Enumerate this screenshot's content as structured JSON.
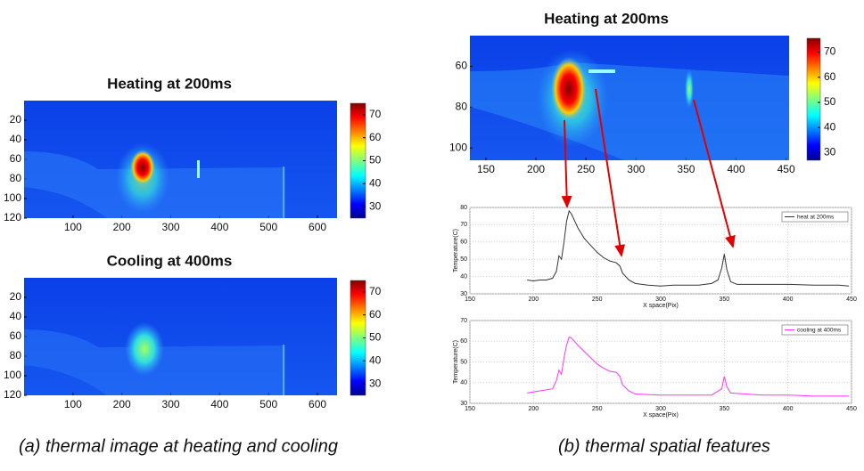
{
  "chart_data": [
    {
      "type": "heatmap",
      "title": "Heating at 200ms",
      "xlim": [
        0,
        640
      ],
      "ylim": [
        120,
        0
      ],
      "xticks": [
        100,
        200,
        300,
        400,
        500,
        600
      ],
      "yticks": [
        20,
        40,
        60,
        80,
        100,
        120
      ],
      "clim": [
        25,
        75
      ],
      "cticks": [
        30,
        40,
        50,
        60,
        70
      ]
    },
    {
      "type": "heatmap",
      "title": "Cooling at 400ms",
      "xlim": [
        0,
        640
      ],
      "ylim": [
        120,
        0
      ],
      "xticks": [
        100,
        200,
        300,
        400,
        500,
        600
      ],
      "yticks": [
        20,
        40,
        60,
        80,
        100,
        120
      ],
      "clim": [
        25,
        75
      ],
      "cticks": [
        30,
        40,
        50,
        60,
        70
      ]
    },
    {
      "type": "heatmap",
      "title": "Heating at 200ms",
      "xlim": [
        134,
        453
      ],
      "ylim": [
        106,
        45
      ],
      "xticks": [
        150,
        200,
        250,
        300,
        350,
        400,
        450
      ],
      "yticks": [
        60,
        80,
        100
      ],
      "clim": [
        27,
        75.5
      ],
      "cticks": [
        30,
        40,
        50,
        60,
        70
      ]
    },
    {
      "type": "line",
      "xlabel": "X space(Pix)",
      "ylabel": "Temperature(C)",
      "xlim": [
        150,
        450
      ],
      "ylim": [
        30,
        80
      ],
      "xticks": [
        150,
        200,
        250,
        300,
        350,
        400,
        450
      ],
      "yticks": [
        30,
        40,
        50,
        60,
        70,
        80
      ],
      "grid": true,
      "legend": "upper right",
      "x": [
        195,
        200,
        205,
        210,
        215,
        218,
        220,
        222,
        224,
        226,
        228,
        230,
        235,
        240,
        245,
        250,
        255,
        260,
        265,
        268,
        270,
        275,
        280,
        290,
        300,
        310,
        320,
        330,
        340,
        345,
        348,
        350,
        352,
        355,
        360,
        380,
        400,
        420,
        440,
        448
      ],
      "series": [
        {
          "name": "heat at 200ms",
          "color": "#333333",
          "values": [
            38,
            37.5,
            38,
            38,
            39,
            43,
            52,
            50,
            60,
            72,
            78,
            76,
            68,
            62,
            58,
            54,
            51,
            49,
            48,
            46,
            42,
            38,
            36,
            35,
            34.5,
            35,
            35,
            35,
            36,
            38,
            45,
            53,
            44,
            37,
            35.5,
            35.5,
            35.5,
            35,
            35,
            34.5
          ]
        }
      ]
    },
    {
      "type": "line",
      "xlabel": "X space(Pix)",
      "ylabel": "Temperature(C)",
      "xlim": [
        150,
        450
      ],
      "ylim": [
        30,
        70
      ],
      "xticks": [
        150,
        200,
        250,
        300,
        350,
        400,
        450
      ],
      "yticks": [
        30,
        40,
        50,
        60,
        70
      ],
      "grid": true,
      "legend": "upper right",
      "x": [
        195,
        205,
        215,
        218,
        220,
        222,
        224,
        226,
        228,
        230,
        235,
        240,
        245,
        250,
        255,
        260,
        265,
        268,
        270,
        275,
        280,
        300,
        320,
        340,
        348,
        350,
        352,
        355,
        380,
        400,
        420,
        448
      ],
      "series": [
        {
          "name": "cooling at 400ms",
          "color": "#ff33ff",
          "values": [
            35,
            36,
            37,
            41,
            46,
            44,
            52,
            58,
            62,
            61.5,
            58,
            55,
            52,
            49,
            47,
            45.5,
            45,
            43,
            39,
            36,
            34.5,
            34,
            34,
            34,
            37,
            43,
            38,
            35,
            34,
            34,
            33.5,
            33.5
          ]
        }
      ]
    }
  ],
  "captions": [
    "(a) thermal image at heating and cooling",
    "(b) thermal spatial features"
  ]
}
